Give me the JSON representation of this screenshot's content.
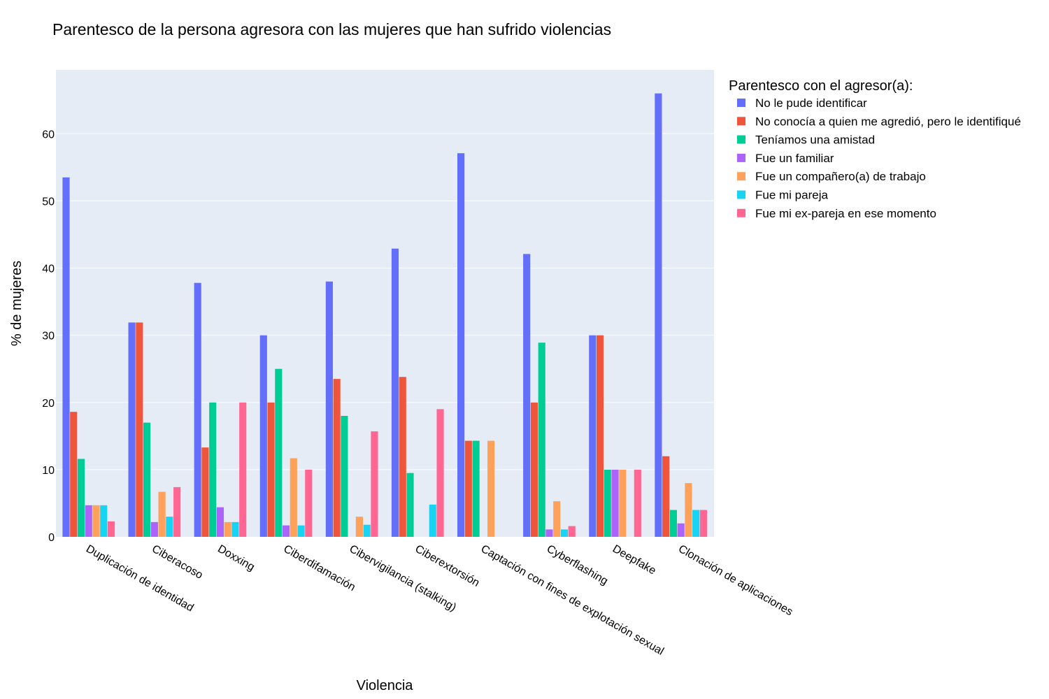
{
  "chart_data": {
    "type": "bar",
    "title": "Parentesco de la persona agresora con las mujeres que han sufrido violencias",
    "xlabel": "Violencia",
    "ylabel": "% de mujeres",
    "ylim": [
      0,
      69.5
    ],
    "yticks": [
      0,
      10,
      20,
      30,
      40,
      50,
      60
    ],
    "grid": true,
    "legend_title": "Parentesco con el agresor(a):",
    "legend_position": "right",
    "categories": [
      "Duplicación de identidad",
      "Ciberacoso",
      "Doxxing",
      "Ciberdifamación",
      "Cibervigilancia (stalking)",
      "Ciberextorsión",
      "Captación con fines de explotación sexual",
      "Cyberflashing",
      "Deepfake",
      "Clonación de aplicaciones"
    ],
    "series": [
      {
        "name": "No le pude identificar",
        "color": "#636efa",
        "values": [
          53.5,
          31.9,
          37.8,
          30,
          38,
          42.9,
          57.1,
          42.1,
          30,
          66
        ]
      },
      {
        "name": "No conocía a quien me agredió, pero le identifiqué",
        "color": "#ef553b",
        "values": [
          18.6,
          31.9,
          13.3,
          20,
          23.5,
          23.8,
          14.3,
          20,
          30,
          12
        ]
      },
      {
        "name": "Teníamos una amistad",
        "color": "#00cc96",
        "values": [
          11.6,
          17,
          20,
          25,
          18,
          9.5,
          14.3,
          28.9,
          10,
          4
        ]
      },
      {
        "name": "Fue un familiar",
        "color": "#ab63fa",
        "values": [
          4.7,
          2.2,
          4.4,
          1.7,
          0,
          0,
          0,
          1.1,
          10,
          2
        ]
      },
      {
        "name": "Fue un compañero(a) de trabajo",
        "color": "#ffa15a",
        "values": [
          4.7,
          6.7,
          2.2,
          11.7,
          3,
          0,
          14.3,
          5.3,
          10,
          8
        ]
      },
      {
        "name": "Fue mi pareja",
        "color": "#19d3f3",
        "values": [
          4.7,
          3,
          2.2,
          1.7,
          1.8,
          4.8,
          0,
          1.1,
          0,
          4
        ]
      },
      {
        "name": "Fue mi ex-pareja en ese momento",
        "color": "#ff6692",
        "values": [
          2.3,
          7.4,
          20,
          10,
          15.7,
          19,
          0,
          1.6,
          10,
          4
        ]
      }
    ]
  }
}
